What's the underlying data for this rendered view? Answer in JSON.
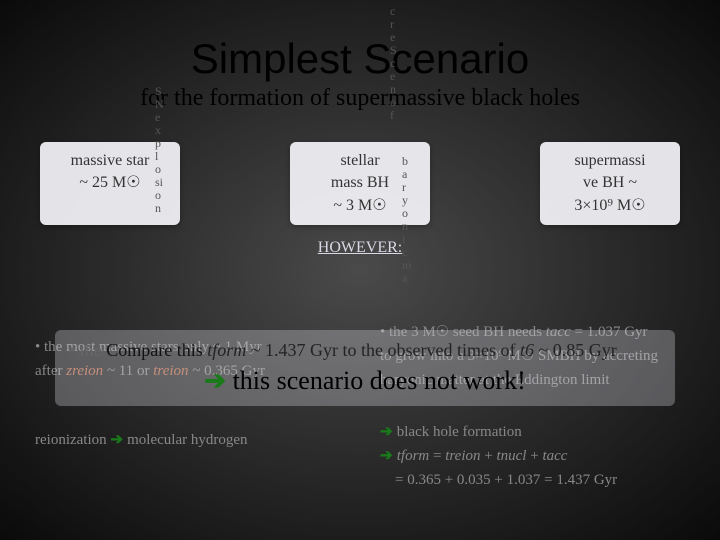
{
  "title": "Simplest Scenario",
  "subtitle": "for the formation of supermassive black holes",
  "vert_left": "SNexplosion",
  "vert_mid": "creScenof",
  "vert_right": "baryonicma",
  "boxes": {
    "left": {
      "line1": "massive star",
      "line2": "~ 25 M☉"
    },
    "mid": {
      "line1": "stellar",
      "line2": "mass BH",
      "line3": "~ 3 M☉"
    },
    "right": {
      "line1": "supermassi",
      "line2": "ve BH ~",
      "line3": "3×10⁹ M☉"
    }
  },
  "however": "HOWEVER:",
  "ghost": {
    "g1a": "• the most massive stars only ~ 1 Myr",
    "g1b": "after",
    "g1c": "zreion",
    "g1d": "~ 11 or",
    "g1e": "treion",
    "g1f": "~ 0.365 Gyr",
    "g2a": "• the 3 M☉ seed BH needs",
    "g2b": "tacc",
    "g2c": "= 1.037 Gyr",
    "g2d": "to grow into a 3×10⁹ M☉ SMBH by accreting",
    "g2e": "baryonic matter at the Eddington limit",
    "g3a": "reionization",
    "g3b": "molecular hydrogen",
    "g4a": "black hole formation",
    "g4b": "tform",
    "g4c": "=",
    "g4d": "treion",
    "g4e": "+",
    "g4f": "tnucl",
    "g4g": "+",
    "g4h": "tacc",
    "g4i": "= 0.365 + 0.035 + 1.037 = 1.437 Gyr"
  },
  "overlay": {
    "prefix": "• the",
    "compare1": "Compare this",
    "tform": "tform",
    "mid1": "~ 1.437 Gyr to the observed times of",
    "t6": "t6",
    "mid2": "~ 0.85 Gyr"
  },
  "conclusion_arrow": "➔",
  "conclusion": "this scenario does not work!",
  "colors": {
    "bg_dark": "#0a0a0a",
    "bg_mid": "#4a4a4a",
    "box_bg": "#f5f5fa",
    "title_color": "#000000",
    "ghost_color": "#888888",
    "arrow_green": "#1a7a1a"
  }
}
